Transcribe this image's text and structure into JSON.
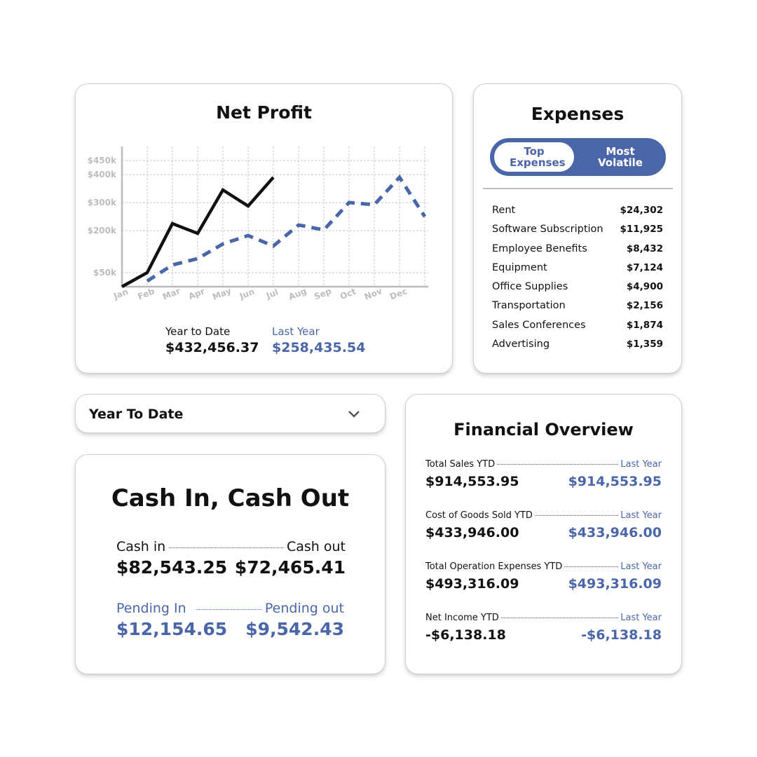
{
  "chart_data": {
    "type": "line",
    "title": "Net Profit",
    "categories": [
      "Jan",
      "Feb",
      "Mar",
      "Apr",
      "May",
      "Jun",
      "Jul",
      "Aug",
      "Sep",
      "Oct",
      "Nov",
      "Dec",
      null
    ],
    "series": [
      {
        "color": "#111111",
        "dash": false,
        "values": [
          0,
          50000,
          225000,
          190000,
          345000,
          287500,
          390000,
          null,
          null,
          null,
          null,
          null,
          null
        ]
      },
      {
        "color": "#4a66a8",
        "dash": true,
        "values": [
          null,
          20000,
          77500,
          100000,
          152500,
          182500,
          145000,
          220000,
          202500,
          300000,
          292500,
          390000,
          250000
        ]
      }
    ],
    "ylim": [
      0,
      500000
    ],
    "yticks": [
      {
        "value": 450000,
        "label": "$450k"
      },
      {
        "value": 400000,
        "label": "$400k"
      },
      {
        "value": 300000,
        "label": "$300k"
      },
      {
        "value": 200000,
        "label": "$200k"
      },
      {
        "value": 50000,
        "label": "$50k"
      }
    ],
    "grid": true
  },
  "net_profit_summary": {
    "ytd_label": "Year to Date",
    "ytd_value": "$432,456.37",
    "last_year_label": "Last Year",
    "last_year_value": "$258,435.54"
  },
  "expenses": {
    "title": "Expenses",
    "tabs": [
      "Top Expenses",
      "Most Volatile"
    ],
    "items": [
      {
        "name": "Rent",
        "amount": "$24,302"
      },
      {
        "name": "Software Subscription",
        "amount": "$11,925"
      },
      {
        "name": "Employee Benefits",
        "amount": "$8,432"
      },
      {
        "name": "Equipment",
        "amount": "$7,124"
      },
      {
        "name": "Office Supplies",
        "amount": "$4,900"
      },
      {
        "name": "Transportation",
        "amount": "$2,156"
      },
      {
        "name": "Sales Conferences",
        "amount": "$1,874"
      },
      {
        "name": "Advertising",
        "amount": "$1,359"
      }
    ]
  },
  "period_select": {
    "value": "Year To Date"
  },
  "cash": {
    "title": "Cash In, Cash Out",
    "in_label": "Cash in",
    "out_label": "Cash out",
    "in_value": "$82,543.25",
    "out_value": "$72,465.41",
    "pending_in_label": "Pending In",
    "pending_out_label": "Pending out",
    "pending_in_value": "$12,154.65",
    "pending_out_value": "$9,542.43"
  },
  "overview": {
    "title": "Financial Overview",
    "rows": [
      {
        "label": "Total Sales YTD",
        "last_label": "Last Year",
        "value": "$914,553.95",
        "last_value": "$914,553.95"
      },
      {
        "label": "Cost of Goods Sold YTD",
        "last_label": "Last Year",
        "value": "$433,946.00",
        "last_value": "$433,946.00"
      },
      {
        "label": "Total Operation Expenses YTD",
        "last_label": "Last Year",
        "value": "$493,316.09",
        "last_value": "$493,316.09"
      },
      {
        "label": "Net Income YTD",
        "last_label": "Last Year",
        "value": "-$6,138.18",
        "last_value": "-$6,138.18"
      }
    ]
  }
}
